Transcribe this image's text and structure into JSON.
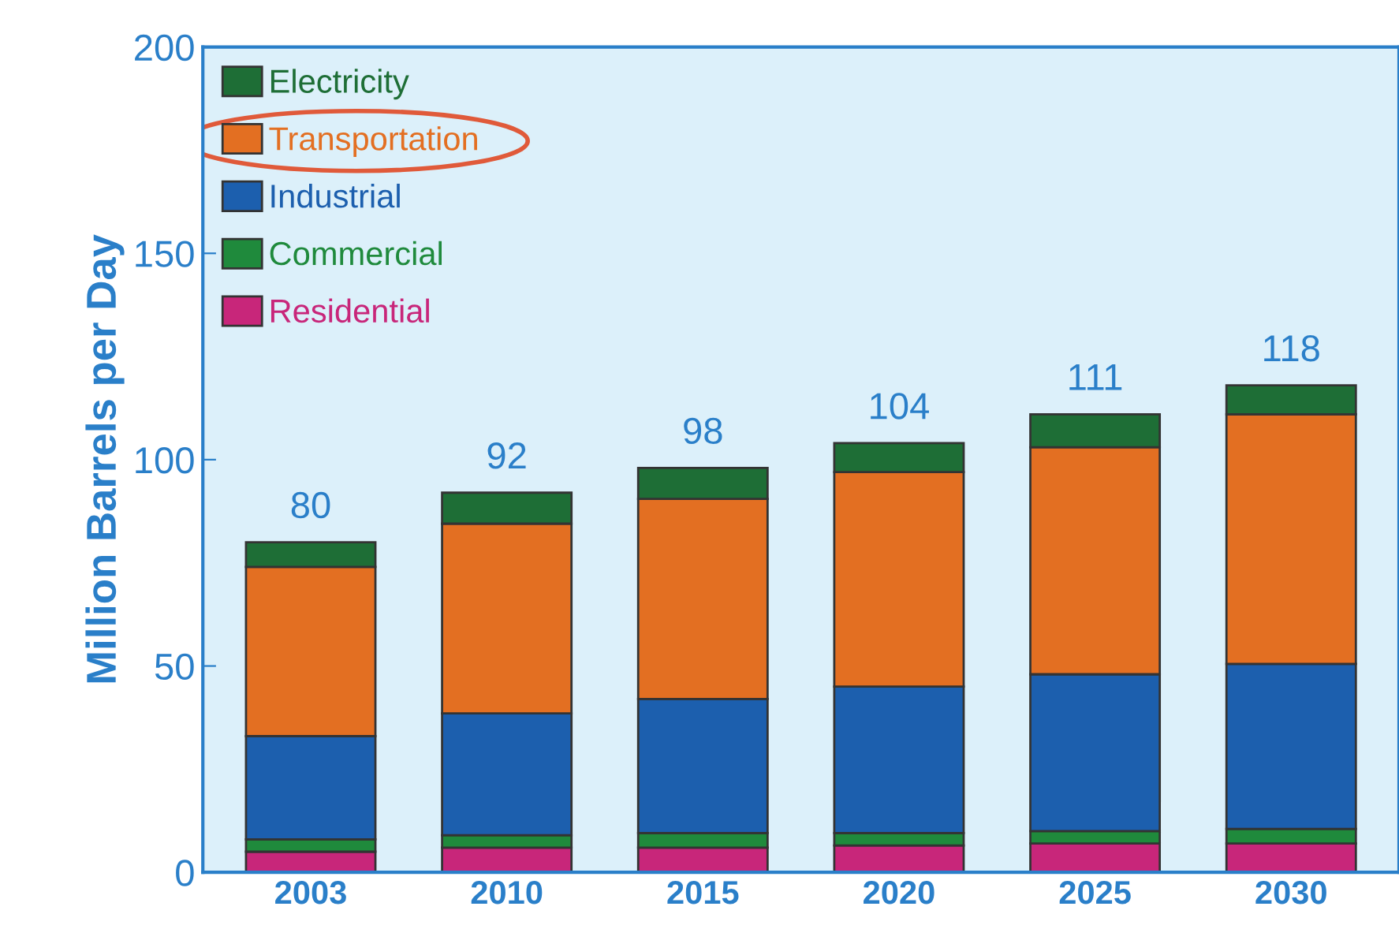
{
  "chart_data": {
    "type": "bar",
    "stacked": true,
    "ylabel": "Million Barrels per Day",
    "categories": [
      "2003",
      "2010",
      "2015",
      "2020",
      "2025",
      "2030"
    ],
    "series": [
      {
        "name": "Residential",
        "color": "#c8267a",
        "values": [
          5,
          6,
          6,
          6.5,
          7,
          7
        ]
      },
      {
        "name": "Commercial",
        "color": "#1f8a3c",
        "values": [
          3,
          3,
          3.5,
          3,
          3,
          3.5
        ]
      },
      {
        "name": "Industrial",
        "color": "#1c5fae",
        "values": [
          25,
          29.5,
          32.5,
          35.5,
          38,
          40
        ]
      },
      {
        "name": "Transportation",
        "color": "#e36f22",
        "values": [
          41,
          46,
          48.5,
          52,
          55,
          60.5
        ]
      },
      {
        "name": "Electricity",
        "color": "#1e6e36",
        "values": [
          6,
          7.5,
          7.5,
          7,
          8,
          7
        ]
      }
    ],
    "totals": [
      "80",
      "92",
      "98",
      "104",
      "111",
      "118"
    ],
    "ylim": [
      0,
      200
    ],
    "yticks": [
      0,
      50,
      100,
      150,
      200
    ],
    "grid": false,
    "legend": "top left"
  }
}
